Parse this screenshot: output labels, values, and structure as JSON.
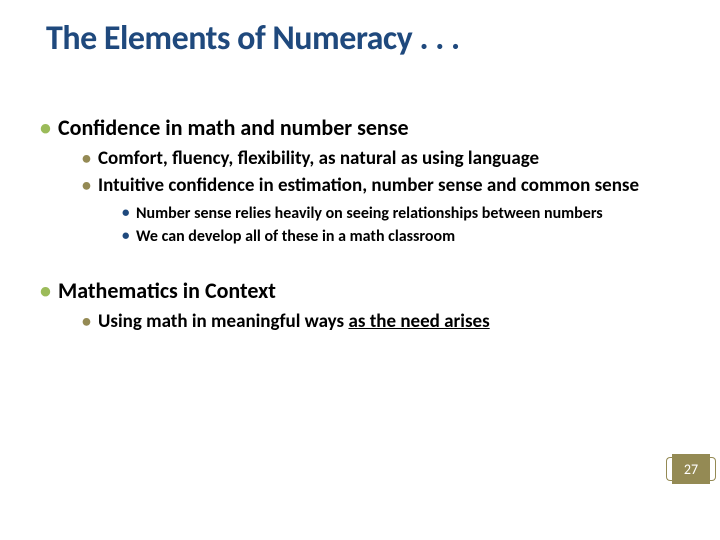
{
  "title": "The Elements of Numeracy . . .",
  "colors": {
    "title": "#1f497d",
    "bullet_lvl1": "#9bbb59",
    "bullet_lvl2": "#948a54",
    "bullet_lvl3": "#1f497d",
    "badge_bg": "#948a54",
    "badge_text": "#ffffff",
    "body_text": "#000000",
    "background": "#ffffff"
  },
  "fontsize": {
    "title": 34,
    "lvl1": 22,
    "lvl2": 19,
    "lvl3": 16,
    "badge": 14
  },
  "sections": [
    {
      "heading": "Confidence in math and number sense",
      "items": [
        {
          "text": "Comfort, fluency, flexibility, as natural as using language"
        },
        {
          "text": "Intuitive confidence in estimation, number sense and common sense",
          "subitems": [
            "Number sense relies heavily on seeing relationships between numbers",
            "We can develop all of these in a math classroom"
          ]
        }
      ]
    },
    {
      "heading": "Mathematics in Context",
      "items": [
        {
          "text_pre": "Using math in meaningful ways ",
          "text_underlined": "as the need arises"
        }
      ]
    }
  ],
  "page_number": "27"
}
